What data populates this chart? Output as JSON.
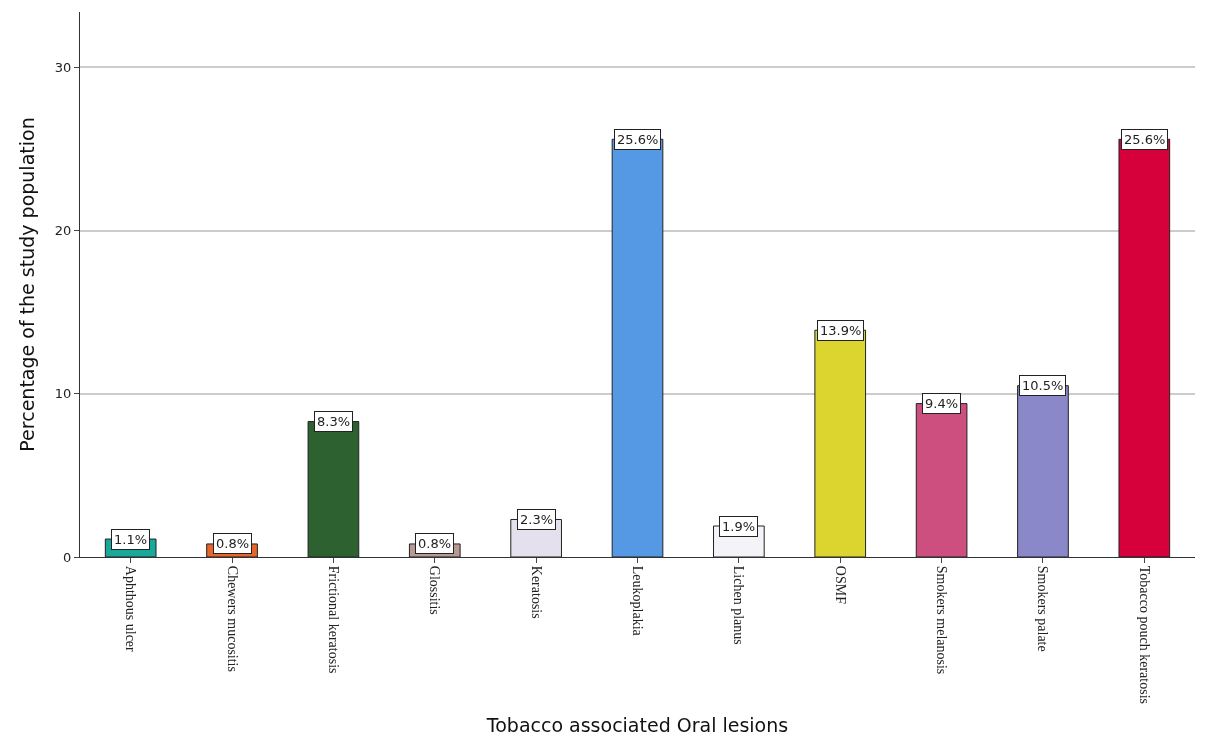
{
  "chart_data": {
    "type": "bar",
    "xlabel": "Tobacco associated Oral lesions",
    "ylabel": "Percentage of the study population",
    "categories": [
      "Aphthous ulcer",
      "Chewers mucositis",
      "Frictional keratosis",
      "Glossitis",
      "Keratosis",
      "Leukoplakia",
      "Lichen planus",
      "OSMF",
      "Smokers melanosis",
      "Smokers palate",
      "Tobacco pouch keratosis"
    ],
    "values": [
      1.1,
      0.8,
      8.3,
      0.8,
      2.3,
      25.6,
      1.9,
      13.9,
      9.4,
      10.5,
      25.6
    ],
    "value_labels": [
      "1.1%",
      "0.8%",
      "8.3%",
      "0.8%",
      "2.3%",
      "25.6%",
      "1.9%",
      "13.9%",
      "9.4%",
      "10.5%",
      "25.6%"
    ],
    "colors": [
      "#1aa89a",
      "#e8662a",
      "#2e6130",
      "#b89a94",
      "#e4e0ee",
      "#5599e5",
      "#f4f4f8",
      "#ddd52f",
      "#cc4f7f",
      "#8a88c8",
      "#d6003a"
    ],
    "ylim": [
      0,
      33.4
    ],
    "yticks": [
      0,
      10,
      20,
      30
    ],
    "grid": "y"
  }
}
